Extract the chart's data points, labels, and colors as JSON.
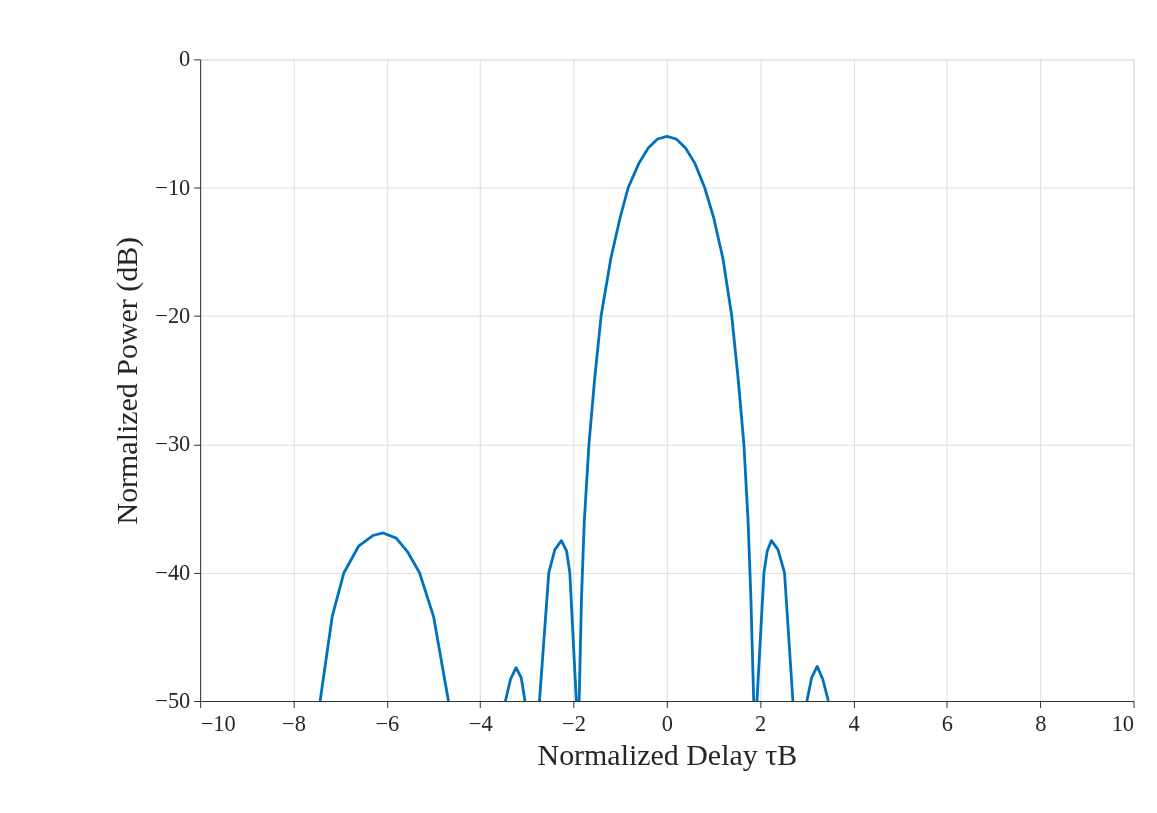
{
  "chart_data": {
    "type": "line",
    "xlabel": "Normalized Delay τB",
    "ylabel": "Normalized Power (dB)",
    "x": [
      -7.43,
      -7.17,
      -6.92,
      -6.6,
      -6.3,
      -6.08,
      -5.8,
      -5.55,
      -5.3,
      -5.0,
      -4.68,
      -4.0,
      -3.46,
      -3.35,
      -3.23,
      -3.12,
      -3.04,
      -2.9,
      -2.73,
      -2.53,
      -2.4,
      -2.26,
      -2.15,
      -2.08,
      -1.94,
      -1.91,
      -1.88,
      -1.83,
      -1.77,
      -1.67,
      -1.55,
      -1.41,
      -1.2,
      -1.0,
      -0.83,
      -0.6,
      -0.4,
      -0.2,
      0,
      0.2,
      0.4,
      0.6,
      0.81,
      1.0,
      1.2,
      1.39,
      1.53,
      1.65,
      1.74,
      1.8,
      1.86,
      1.9,
      1.93,
      2.08,
      2.15,
      2.24,
      2.38,
      2.52,
      2.7,
      2.85,
      3.0,
      3.1,
      3.22,
      3.34,
      3.46
    ],
    "series": [
      {
        "color": "#0072bd",
        "values": [
          -50,
          -43.4,
          -40,
          -37.9,
          -37.1,
          -36.9,
          -37.3,
          -38.4,
          -40,
          -43.4,
          -50,
          null,
          -50,
          -48.3,
          -47.4,
          -48.2,
          -50,
          null,
          -50,
          -40,
          -38.2,
          -37.5,
          -38.3,
          -40,
          -50,
          null,
          -50,
          -42,
          -36,
          -30,
          -25,
          -20,
          -15.5,
          -12.3,
          -10,
          -8.1,
          -6.9,
          -6.2,
          -6,
          -6.2,
          -6.9,
          -8.1,
          -10,
          -12.3,
          -15.5,
          -20,
          -25,
          -30,
          -36,
          -42,
          -50,
          null,
          -50,
          -40,
          -38.3,
          -37.5,
          -38.2,
          -40,
          -50,
          null,
          -50,
          -48.2,
          -47.3,
          -48.3,
          -50
        ]
      }
    ],
    "xlim": [
      -10,
      10
    ],
    "xticks": [
      -10,
      -8,
      -6,
      -4,
      -2,
      0,
      2,
      4,
      6,
      8,
      10
    ],
    "ylim": [
      -50,
      0
    ],
    "yticks": [
      -50,
      -40,
      -30,
      -20,
      -10,
      0
    ],
    "grid": true,
    "marker": "none",
    "line_style": "solid",
    "legend": false
  }
}
